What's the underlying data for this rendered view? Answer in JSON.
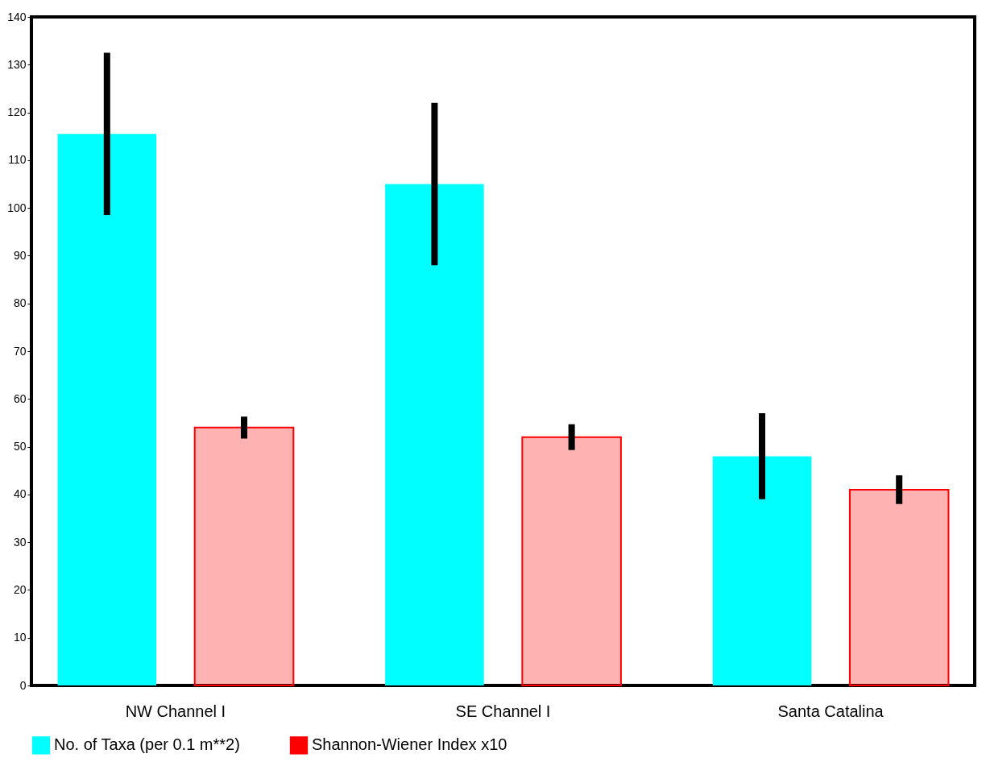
{
  "chart_data": {
    "type": "bar",
    "categories": [
      "NW Channel I",
      "SE Channel I",
      "Santa Catalina"
    ],
    "series": [
      {
        "name": "No. of Taxa (per 0.1 m**2)",
        "color": "#00ffff",
        "values": [
          115.5,
          105,
          48
        ],
        "errors": [
          17,
          17,
          9
        ]
      },
      {
        "name": "Shannon-Wiener Index x10",
        "color": "#ff0000",
        "values": [
          54,
          52,
          41
        ],
        "errors": [
          2.3,
          2.7,
          3
        ]
      }
    ],
    "ylim": [
      0,
      140
    ],
    "yticks": [
      0,
      10,
      20,
      30,
      40,
      50,
      60,
      70,
      80,
      90,
      100,
      110,
      120,
      130,
      140
    ],
    "grid": false,
    "legend": "bottom"
  }
}
